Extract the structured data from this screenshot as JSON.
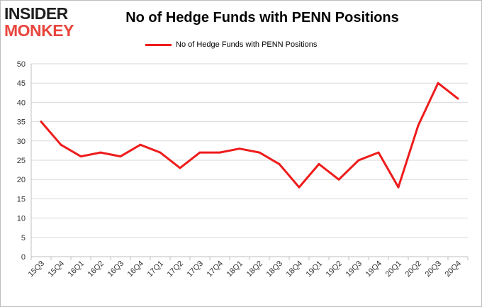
{
  "logo": {
    "line1": "INSIDER",
    "line2": "MONKEY"
  },
  "chart_data": {
    "type": "line",
    "title": "No of Hedge Funds with PENN Positions",
    "xlabel": "",
    "ylabel": "",
    "categories": [
      "15Q3",
      "15Q4",
      "16Q1",
      "16Q2",
      "16Q3",
      "16Q4",
      "17Q1",
      "17Q2",
      "17Q3",
      "17Q4",
      "18Q1",
      "18Q2",
      "18Q3",
      "18Q4",
      "19Q1",
      "19Q2",
      "19Q3",
      "19Q4",
      "20Q1",
      "20Q2",
      "20Q3",
      "20Q4"
    ],
    "series": [
      {
        "name": "No of Hedge Funds with PENN Positions",
        "values": [
          35,
          29,
          26,
          27,
          26,
          29,
          27,
          23,
          27,
          27,
          28,
          27,
          24,
          18,
          24,
          20,
          25,
          27,
          18,
          34,
          45,
          41
        ]
      }
    ],
    "ylim": [
      0,
      50
    ],
    "yticks": [
      0,
      5,
      10,
      15,
      20,
      25,
      30,
      35,
      40,
      45,
      50
    ],
    "grid": true,
    "legend": "top-center",
    "colors": {
      "line": "#ee1c1c",
      "grid": "#d9d9d9",
      "axis": "#bfbfbf"
    }
  }
}
